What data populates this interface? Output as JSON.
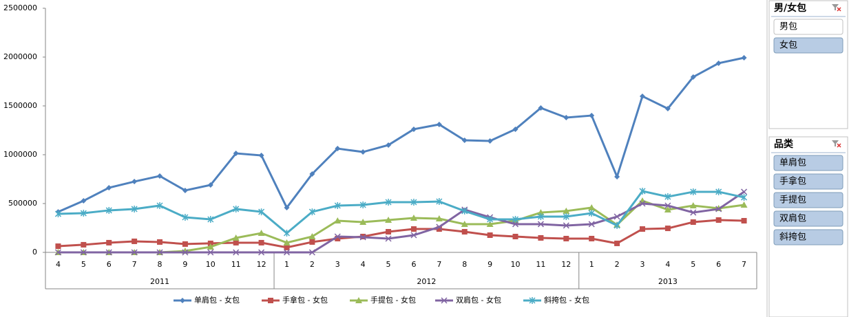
{
  "chart_data": {
    "type": "line",
    "groups": [
      {
        "label": "2011",
        "categories": [
          4,
          5,
          6,
          7,
          8,
          9,
          10,
          11,
          12
        ]
      },
      {
        "label": "2012",
        "categories": [
          1,
          2,
          3,
          4,
          5,
          6,
          7,
          8,
          9,
          10,
          11,
          12
        ]
      },
      {
        "label": "2013",
        "categories": [
          1,
          2,
          3,
          4,
          5,
          6,
          7
        ]
      }
    ],
    "ylim": [
      0,
      2500000
    ],
    "yticks": [
      0,
      500000,
      1000000,
      1500000,
      2000000,
      2500000
    ],
    "grid": false,
    "legend": "bottom",
    "series": [
      {
        "name": "单肩包 - 女包",
        "color": "#4F81BD",
        "marker": "diamond",
        "values": [
          415000,
          528000,
          662000,
          725000,
          782000,
          634000,
          690000,
          1014000,
          993000,
          458000,
          803000,
          1063000,
          1028000,
          1099000,
          1261000,
          1310000,
          1148000,
          1141000,
          1261000,
          1479000,
          1380000,
          1401000,
          775000,
          1599000,
          1472000,
          1796000,
          1937000,
          1993000
        ]
      },
      {
        "name": "手拿包 - 女包",
        "color": "#C0504D",
        "marker": "square",
        "values": [
          63000,
          78000,
          99000,
          113000,
          106000,
          85000,
          92000,
          99000,
          99000,
          50000,
          106000,
          141000,
          162000,
          211000,
          239000,
          239000,
          211000,
          176000,
          162000,
          148000,
          141000,
          141000,
          92000,
          239000,
          246000,
          310000,
          331000,
          324000
        ]
      },
      {
        "name": "手提包 - 女包",
        "color": "#9BBB59",
        "marker": "triangle",
        "values": [
          0,
          0,
          0,
          0,
          0,
          14000,
          56000,
          148000,
          197000,
          99000,
          162000,
          324000,
          310000,
          331000,
          352000,
          345000,
          289000,
          289000,
          324000,
          408000,
          423000,
          458000,
          282000,
          528000,
          437000,
          479000,
          451000,
          486000
        ]
      },
      {
        "name": "双肩包 - 女包",
        "color": "#8064A2",
        "marker": "x",
        "values": [
          0,
          0,
          0,
          0,
          0,
          0,
          0,
          0,
          0,
          0,
          0,
          162000,
          155000,
          141000,
          176000,
          260000,
          437000,
          359000,
          289000,
          289000,
          275000,
          289000,
          366000,
          500000,
          479000,
          408000,
          444000,
          620000
        ]
      },
      {
        "name": "斜挎包 - 女包",
        "color": "#4BACC6",
        "marker": "star",
        "values": [
          394000,
          401000,
          430000,
          444000,
          479000,
          359000,
          338000,
          444000,
          415000,
          197000,
          415000,
          479000,
          486000,
          514000,
          514000,
          521000,
          423000,
          338000,
          338000,
          366000,
          366000,
          401000,
          275000,
          627000,
          570000,
          620000,
          620000,
          563000
        ]
      }
    ]
  },
  "slicers": [
    {
      "title": "男/女包",
      "items": [
        {
          "label": "男包",
          "selected": false
        },
        {
          "label": "女包",
          "selected": true
        }
      ]
    },
    {
      "title": "品类",
      "items": [
        {
          "label": "单肩包",
          "selected": true
        },
        {
          "label": "手拿包",
          "selected": true
        },
        {
          "label": "手提包",
          "selected": true
        },
        {
          "label": "双肩包",
          "selected": true
        },
        {
          "label": "斜挎包",
          "selected": true
        }
      ]
    }
  ]
}
